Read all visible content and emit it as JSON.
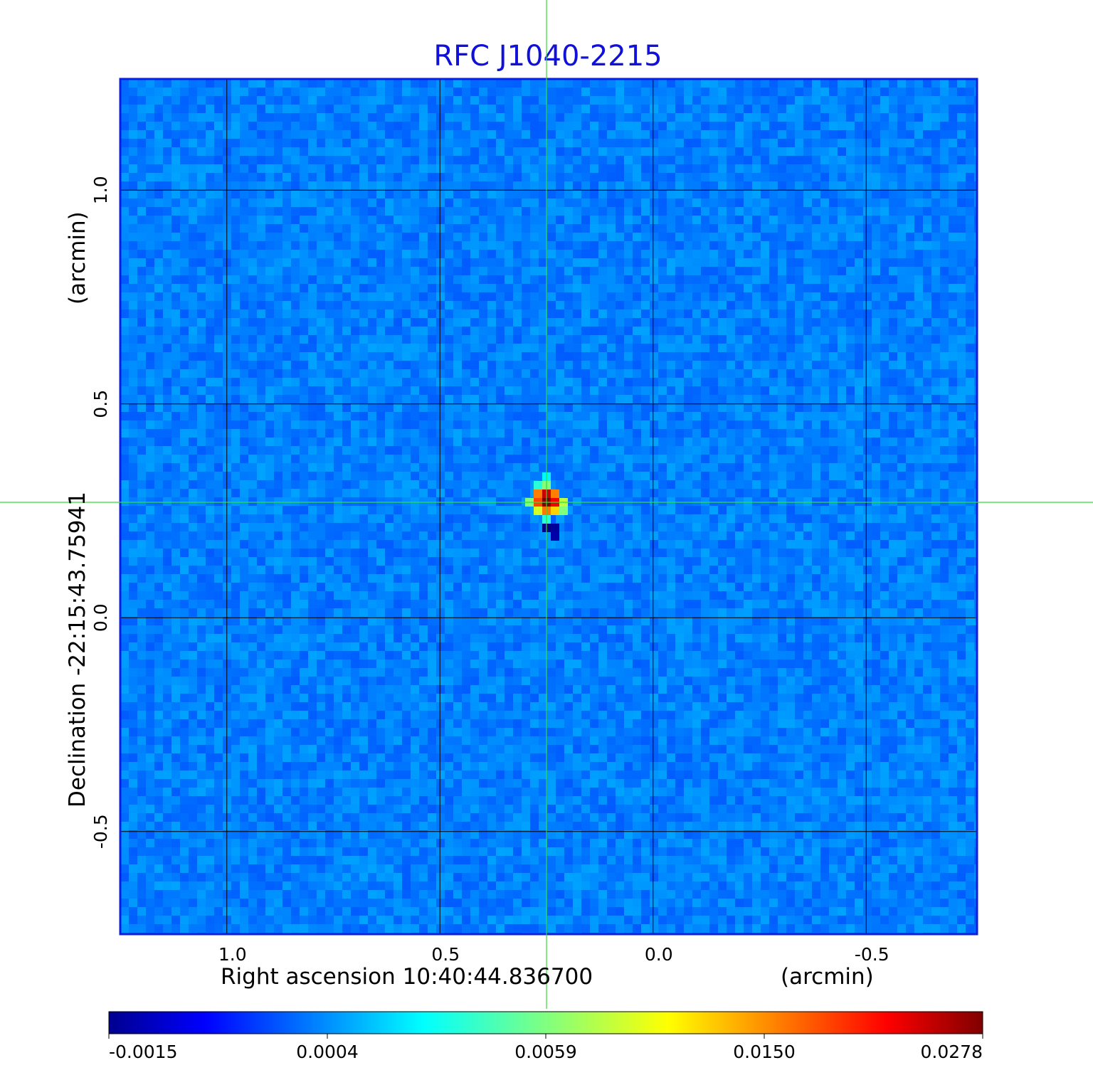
{
  "chart_data": {
    "type": "heatmap",
    "title": "RFC J1040-2215",
    "xlabel": "Right ascension  10:40:44.836700",
    "xunit": "(arcmin)",
    "ylabel": "Declination  -22:15:43.75941",
    "yunit": "(arcmin)",
    "xlim": [
      1.25,
      -0.76
    ],
    "ylim": [
      -0.74,
      1.26
    ],
    "x_ticks": [
      "1.0",
      "0.5",
      "0.0",
      "-0.5"
    ],
    "x_tick_values": [
      1.0,
      0.5,
      0.0,
      -0.5
    ],
    "y_ticks": [
      "1.0",
      "0.5",
      "0.0",
      "-0.5"
    ],
    "y_tick_values": [
      1.0,
      0.5,
      0.0,
      -0.5
    ],
    "grid": true,
    "crosshair": {
      "x": 0.25,
      "y": 0.27,
      "color": "#33dd33"
    },
    "colormap": "jet",
    "colorbar": {
      "ticks": [
        "-0.0015",
        "0.0004",
        "0.0059",
        "0.0150",
        "0.0278"
      ],
      "values": [
        -0.0015,
        0.0004,
        0.0059,
        0.015,
        0.0278
      ]
    },
    "background_level": 0.0004,
    "source": {
      "name": "RFC J1040-2215",
      "x": 0.25,
      "y": 0.27,
      "peak": 0.0278,
      "pixels": [
        {
          "dx": -1,
          "dy": 1,
          "v": 0.015
        },
        {
          "dx": 0,
          "dy": 1,
          "v": 0.024
        },
        {
          "dx": 1,
          "dy": 1,
          "v": 0.015
        },
        {
          "dx": -1,
          "dy": 0,
          "v": 0.018
        },
        {
          "dx": 0,
          "dy": 0,
          "v": 0.0278
        },
        {
          "dx": 1,
          "dy": 0,
          "v": 0.022
        },
        {
          "dx": 2,
          "dy": 0,
          "v": 0.008
        },
        {
          "dx": -2,
          "dy": 0,
          "v": 0.006
        },
        {
          "dx": -1,
          "dy": -1,
          "v": 0.009
        },
        {
          "dx": 0,
          "dy": -1,
          "v": 0.0155
        },
        {
          "dx": 1,
          "dy": -1,
          "v": 0.012
        },
        {
          "dx": 2,
          "dy": -1,
          "v": 0.006
        },
        {
          "dx": 0,
          "dy": 2,
          "v": 0.006
        },
        {
          "dx": -1,
          "dy": 2,
          "v": 0.004
        },
        {
          "dx": 0,
          "dy": 3,
          "v": 0.003
        },
        {
          "dx": 0,
          "dy": -2,
          "v": 0.004
        },
        {
          "dx": 0,
          "dy": -3,
          "v": -0.0015
        },
        {
          "dx": 1,
          "dy": -3,
          "v": -0.0013
        },
        {
          "dx": 1,
          "dy": -4,
          "v": -0.0012
        }
      ]
    }
  }
}
